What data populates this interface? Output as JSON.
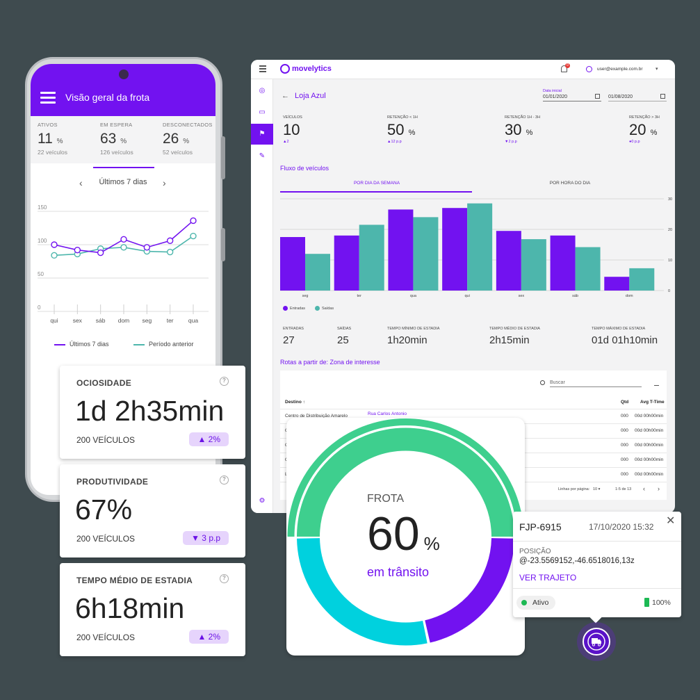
{
  "colors": {
    "primary": "#7212f0",
    "teal": "#4db6ac",
    "green": "#3ecf8e",
    "cyan": "#00d1de"
  },
  "phone": {
    "title": "Visão geral da frota",
    "stats": [
      {
        "label": "ATIVOS",
        "value": "11",
        "unit": "%",
        "sub": "22 veículos"
      },
      {
        "label": "EM ESPERA",
        "value": "63",
        "unit": "%",
        "sub": "126 veículos"
      },
      {
        "label": "DESCONECTADOS",
        "value": "26",
        "unit": "%",
        "sub": "52 veículos"
      }
    ],
    "period": {
      "label": "Últimos 7 dias",
      "prev": "‹",
      "next": "›"
    },
    "legend": {
      "current": "Últimos 7 dias",
      "previous": "Período anterior"
    }
  },
  "chart_data": [
    {
      "type": "line",
      "x": [
        "qui",
        "sex",
        "sáb",
        "dom",
        "seg",
        "ter",
        "qua"
      ],
      "yticks": [
        "0",
        "50",
        "100",
        "150"
      ],
      "ylim": [
        0,
        150
      ],
      "series": [
        {
          "name": "Últimos 7 dias",
          "values": [
            100,
            92,
            88,
            108,
            96,
            106,
            136
          ]
        },
        {
          "name": "Período anterior",
          "values": [
            84,
            86,
            94,
            96,
            90,
            89,
            113
          ]
        }
      ]
    },
    {
      "type": "bar",
      "title": "Fluxo de veículos",
      "categories": [
        "seg",
        "ter",
        "qua",
        "qui",
        "sex",
        "sáb",
        "dom"
      ],
      "yticks": [
        "0",
        "10",
        "20",
        "30"
      ],
      "ylim": [
        0,
        30
      ],
      "series": [
        {
          "name": "Entradas",
          "values": [
            17.5,
            18,
            26.5,
            27,
            19.5,
            18,
            4.5
          ]
        },
        {
          "name": "Saídas",
          "values": [
            12,
            21.5,
            24,
            28.5,
            16.8,
            14.2,
            7.3
          ]
        }
      ]
    }
  ],
  "desk": {
    "logo": "movelytics",
    "notif_count": "0",
    "user": "user@example.com.br",
    "caret": "▾",
    "back": "←",
    "store": "Loja Azul",
    "date_label": "Data inicial",
    "date_start": "01/01/2020",
    "date_end": "01/08/2020",
    "kpis": [
      {
        "label": "VEÍCULOS",
        "value": "10",
        "unit": "",
        "delta": "▲2"
      },
      {
        "label": "RETENÇÃO < 1H",
        "value": "50",
        "unit": "%",
        "delta": "▲12 p.p"
      },
      {
        "label": "RETENÇÃO 1H - 3H",
        "value": "30",
        "unit": "%",
        "delta": "▼2 p.p"
      },
      {
        "label": "RETENÇÃO > 3H",
        "value": "20",
        "unit": "%",
        "delta": "●0 p.p"
      }
    ],
    "flow_title": "Fluxo de veículos",
    "tabs": [
      "POR DIA DA SEMANA",
      "POR HORA DO DIA"
    ],
    "legend": [
      "Entradas",
      "Saídas"
    ],
    "metrics": [
      {
        "label": "ENTRADAS",
        "value": "27"
      },
      {
        "label": "SAÍDAS",
        "value": "25"
      },
      {
        "label": "TEMPO MÍNIMO DE ESTADIA",
        "value": "1h20min"
      },
      {
        "label": "TEMPO MÉDIO DE ESTADIA",
        "value": "2h15min"
      },
      {
        "label": "TEMPO MÁXIMO DE ESTADIA",
        "value": "01d 01h10min"
      }
    ],
    "routes_title": "Rotas a partir de: Zona de interesse",
    "search_placeholder": "Buscar",
    "columns": [
      "Destino ↑",
      "Qtd",
      "Avg T-Time"
    ],
    "first_row": {
      "dest": "Centro de Distribuição Amarelo",
      "addr": "Rua Carlos Antonio",
      "qtd": "000",
      "time": "00d 00h00min"
    },
    "rows": [
      {
        "dest": "C",
        "qtd": "000",
        "time": "00d 00h00min"
      },
      {
        "dest": "C",
        "qtd": "000",
        "time": "00d 00h00min"
      },
      {
        "dest": "C",
        "qtd": "000",
        "time": "00d 00h00min"
      },
      {
        "dest": "L",
        "qtd": "000",
        "time": "00d 00h00min"
      },
      {
        "dest": "L",
        "qtd": "000",
        "time": "00d 00h00min"
      }
    ],
    "pager": {
      "rows_label": "Linhas por página:",
      "rows_value": "10 ▾",
      "range": "1-5 de 13",
      "prev": "‹",
      "next": "›"
    }
  },
  "cards": [
    {
      "title": "OCIOSIDADE",
      "value": "1d 2h35min",
      "sub": "200 VEÍCULOS",
      "badge": "▲ 2%"
    },
    {
      "title": "PRODUTIVIDADE",
      "value": "67%",
      "sub": "200 VEÍCULOS",
      "badge": "▼ 3 p.p"
    },
    {
      "title": "TEMPO MÉDIO DE ESTADIA",
      "value": "6h18min",
      "sub": "200 VEÍCULOS",
      "badge": "▲ 2%"
    }
  ],
  "help_glyph": "?",
  "gauge": {
    "title": "FROTA",
    "value": "60",
    "unit": "%",
    "caption": "em trânsito",
    "transit_fraction": 0.6
  },
  "vehicle": {
    "plate": "FJP-6915",
    "datetime": "17/10/2020 15:32",
    "close": "✕",
    "pos_label": "POSIÇÃO",
    "pos_value": "@-23.5569152,-46.6518016,13z",
    "link": "VER TRAJETO",
    "status": "Ativo",
    "battery": "100%"
  }
}
